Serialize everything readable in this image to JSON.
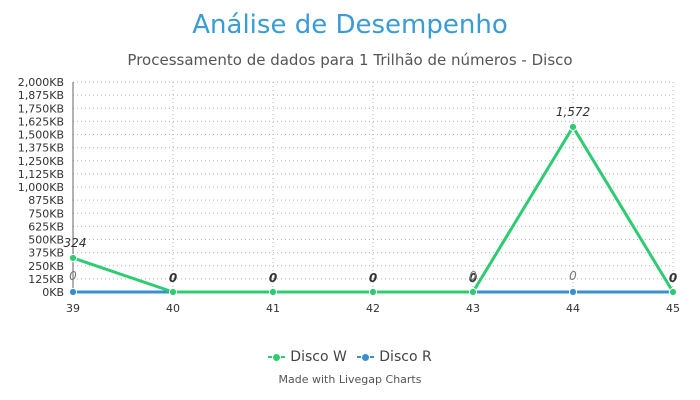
{
  "chart_data": {
    "type": "line",
    "title": "Análise de Desempenho",
    "subtitle": "Processamento de dados para 1 Trilhão de números - Disco",
    "x": [
      "39",
      "40",
      "41",
      "42",
      "43",
      "44",
      "45"
    ],
    "ylim": [
      0,
      2000
    ],
    "yticks": [
      "0KB",
      "125KB",
      "250KB",
      "375KB",
      "500KB",
      "625KB",
      "750KB",
      "875KB",
      "1,000KB",
      "1,125KB",
      "1,250KB",
      "1,375KB",
      "1,500KB",
      "1,625KB",
      "1,750KB",
      "1,875KB",
      "2,000KB"
    ],
    "grid": true,
    "legend_position": "bottom",
    "series": [
      {
        "name": "Disco W",
        "color": "#2ecc71",
        "values": [
          324,
          0,
          0,
          0,
          0,
          1572,
          0
        ],
        "labels": [
          "324",
          "0",
          "0",
          "0",
          "0",
          "1,572",
          "0"
        ]
      },
      {
        "name": "Disco R",
        "color": "#3a8fd0",
        "values": [
          0,
          0,
          0,
          0,
          0,
          0,
          0
        ],
        "labels": [
          "0",
          "",
          "",
          "",
          "0",
          "0",
          ""
        ]
      }
    ]
  },
  "footer": "Made with Livegap Charts"
}
